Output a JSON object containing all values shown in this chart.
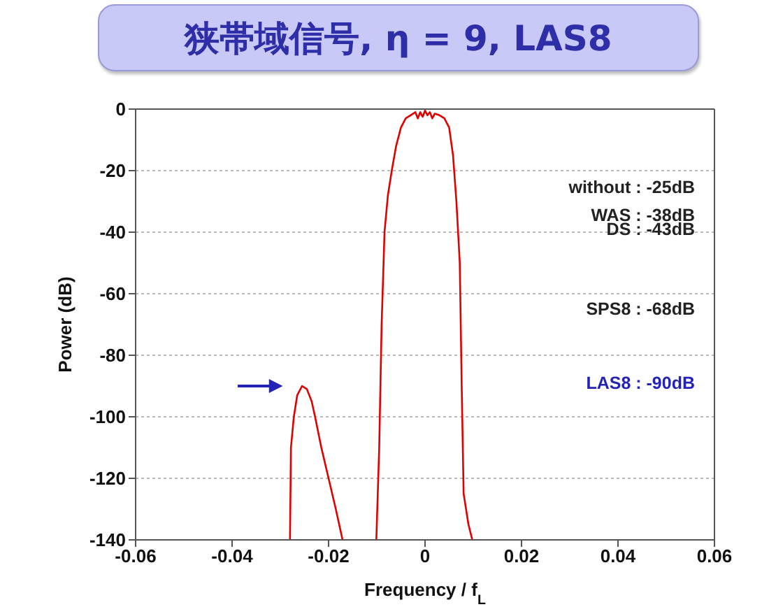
{
  "chart_data": {
    "type": "line",
    "title": "狭帯域信号, η = 9, LAS8",
    "xlabel": "Frequency / f$_{L}$",
    "ylabel": "Power (dB)",
    "x": [
      -0.028,
      -0.0278,
      -0.0272,
      -0.0265,
      -0.0255,
      -0.0245,
      -0.0235,
      -0.0228,
      -0.0215,
      -0.02,
      -0.0185,
      -0.0171,
      -0.014,
      -0.0101,
      -0.0095,
      -0.009,
      -0.0084,
      -0.0077,
      -0.0069,
      -0.006,
      -0.005,
      -0.004,
      -0.003,
      -0.002,
      -0.0015,
      -0.001,
      -0.0005,
      0,
      0.0005,
      0.001,
      0.0015,
      0.002,
      0.003,
      0.004,
      0.005,
      0.0058,
      0.0065,
      0.0072,
      0.0076,
      0.008,
      0.009,
      0.0098
    ],
    "series": [
      {
        "color": "#e00000",
        "values": [
          -140,
          -110,
          -100,
          -93,
          -90,
          -91,
          -95,
          -100,
          -110,
          -120,
          -130,
          -140,
          null,
          -140,
          -110,
          -70,
          -40,
          -28,
          -20,
          -12,
          -6,
          -3,
          -2,
          -1,
          -3,
          -1,
          -2.5,
          -0.5,
          -2,
          -1,
          -3,
          -1.5,
          -2,
          -3,
          -6,
          -15,
          -30,
          -50,
          -90,
          -125,
          -135,
          -140
        ]
      }
    ],
    "xlim": [
      -0.06,
      0.06
    ],
    "xticks": [
      -0.06,
      -0.04,
      -0.02,
      0,
      0.02,
      0.04,
      0.06
    ],
    "ylim": [
      -140,
      0
    ],
    "yticks": [
      -140,
      -120,
      -100,
      -80,
      -60,
      -40,
      -20,
      0
    ],
    "grid": "y",
    "marker": "none",
    "line_style": "solid",
    "legend": false,
    "annotations": [
      "without : -25dB",
      "WAS : -38dB",
      "DS : -43dB",
      "SPS8 : -68dB",
      "LAS8 : -90dB"
    ]
  }
}
